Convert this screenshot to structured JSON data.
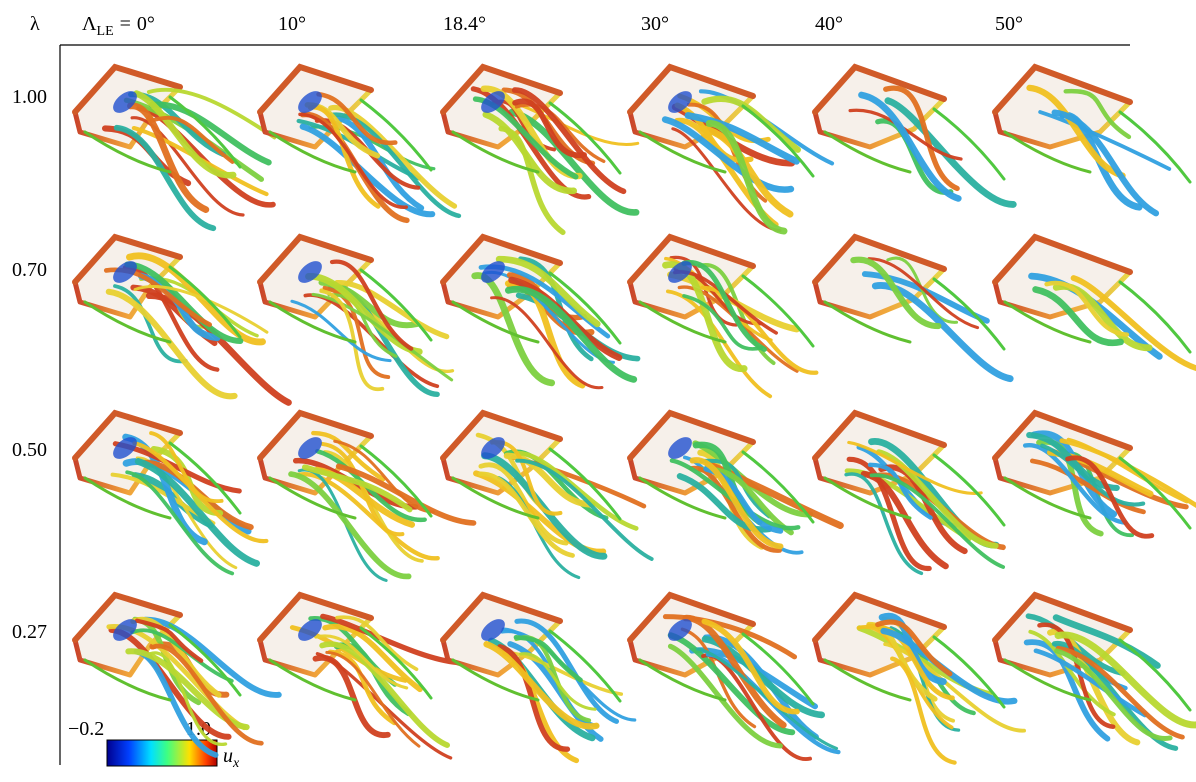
{
  "corner_label": "λ",
  "sweep_label": {
    "symbol": "Λ",
    "subscript": "LE",
    "equals": "="
  },
  "columns": [
    "0°",
    "10°",
    "18.4°",
    "30°",
    "40°",
    "50°"
  ],
  "rows": [
    "1.00",
    "0.70",
    "0.50",
    "0.27"
  ],
  "colorbar": {
    "min_label": "−0.2",
    "max_label": "1.0",
    "symbol": "u",
    "subscript": "x"
  }
}
